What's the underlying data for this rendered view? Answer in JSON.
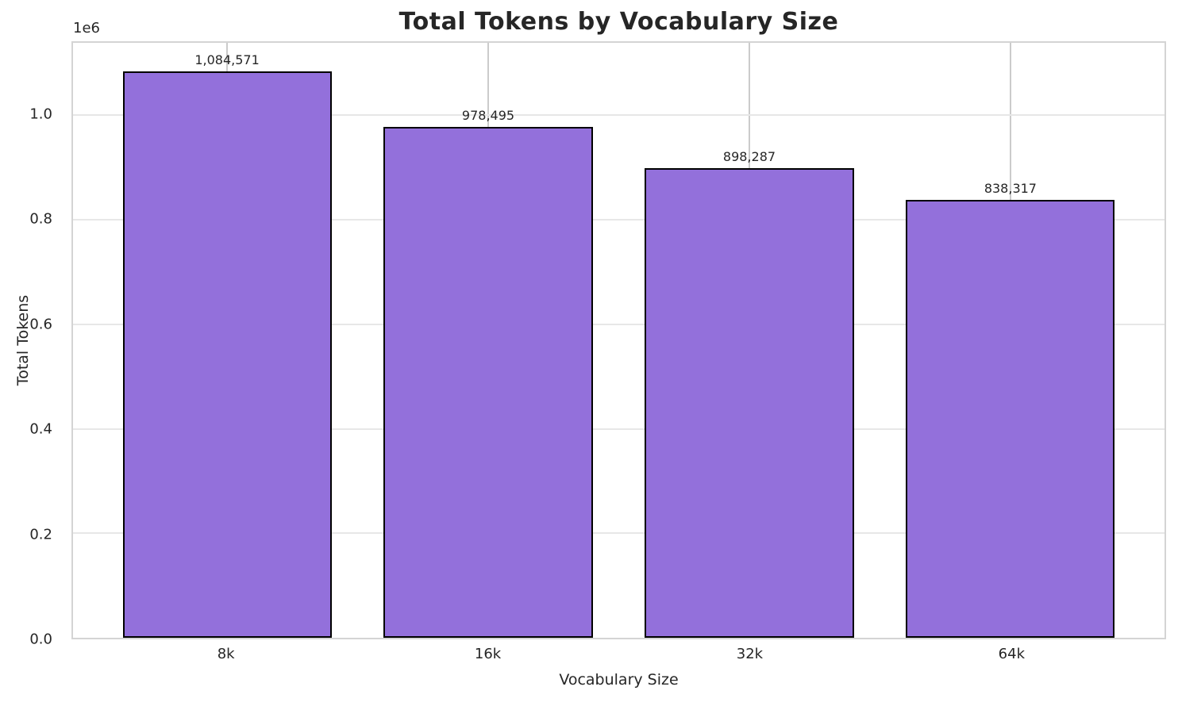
{
  "chart_data": {
    "type": "bar",
    "title": "Total Tokens by Vocabulary Size",
    "xlabel": "Vocabulary Size",
    "ylabel": "Total Tokens",
    "categories": [
      "8k",
      "16k",
      "32k",
      "64k"
    ],
    "values": [
      1084571,
      978495,
      898287,
      838317
    ],
    "value_labels": [
      "1,084,571",
      "978,495",
      "898,287",
      "838,317"
    ],
    "y_ticks": [
      0.0,
      0.2,
      0.4,
      0.6,
      0.8,
      1.0
    ],
    "y_tick_labels": [
      "0.0",
      "0.2",
      "0.4",
      "0.6",
      "0.8",
      "1.0"
    ],
    "y_offset_label": "1e6",
    "y_offset_value": 1000000,
    "ylim": [
      0,
      1138800
    ],
    "bar_width_fraction": 0.8,
    "x_margin_fraction": 0.05,
    "grid": true,
    "legend_position": null,
    "colors": {
      "bar_fill": "#9370DB",
      "bar_edge": "#000000",
      "grid_horizontal": "#e7e7e7",
      "grid_vertical": "#cbcbcb",
      "spine": "#d4d4d4",
      "text": "#262626",
      "background": "#ffffff"
    }
  }
}
